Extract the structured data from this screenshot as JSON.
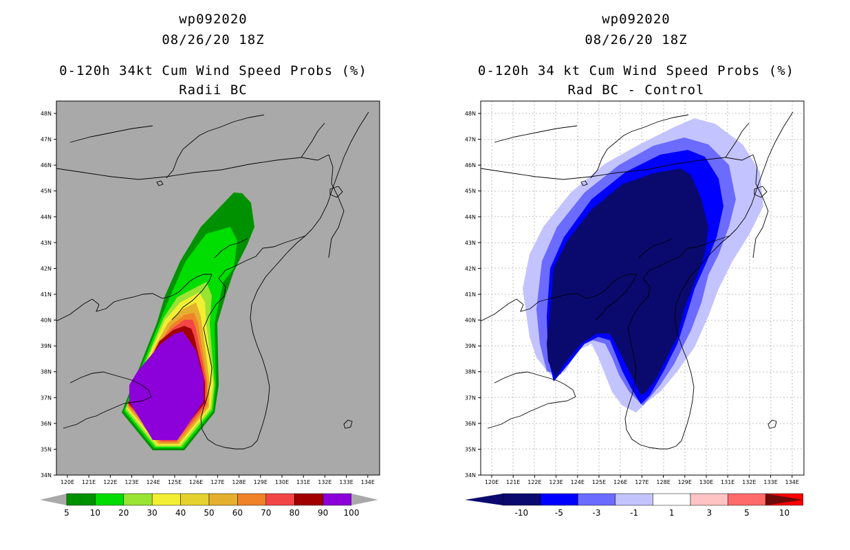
{
  "left_panel": {
    "title_line1": "wp092020",
    "title_line2": "08/26/20 18Z",
    "title_line3": "0-120h 34kt Cum Wind Speed Probs (%)",
    "title_line4": "Radii BC",
    "background_color": "#a9a9a9",
    "colorbar": {
      "labels": [
        "5",
        "10",
        "20",
        "30",
        "40",
        "50",
        "60",
        "70",
        "80",
        "90",
        "100"
      ],
      "colors": [
        "#009100",
        "#00dd00",
        "#99e333",
        "#f2ee33",
        "#e6d22e",
        "#e5b02e",
        "#f08228",
        "#f24646",
        "#a00000",
        "#8c00d9"
      ]
    }
  },
  "right_panel": {
    "title_line1": "wp092020",
    "title_line2": "08/26/20 18Z",
    "title_line3": "0-120h 34 kt Cum Wind Speed Probs (%)",
    "title_line4": "Rad BC - Control",
    "colorbar": {
      "labels": [
        "-10",
        "-5",
        "-3",
        "-1",
        "1",
        "3",
        "5",
        "10"
      ],
      "colors": [
        "#0a0a6e",
        "#0000ff",
        "#6b6bff",
        "#c3c3ff",
        "#ffffff",
        "#ffc3c3",
        "#ff6b6b",
        "#ff0000"
      ],
      "low_arrow_color": "#0a0a6e",
      "high_arrow_color": "#6e0a0a"
    }
  },
  "map_axes": {
    "lat_labels": [
      "34N",
      "35N",
      "36N",
      "37N",
      "38N",
      "39N",
      "40N",
      "41N",
      "42N",
      "43N",
      "44N",
      "45N",
      "46N",
      "47N",
      "48N"
    ],
    "lon_labels": [
      "120E",
      "121E",
      "122E",
      "123E",
      "124E",
      "125E",
      "126E",
      "127E",
      "128E",
      "129E",
      "130E",
      "131E",
      "132E",
      "133E",
      "134E"
    ]
  }
}
